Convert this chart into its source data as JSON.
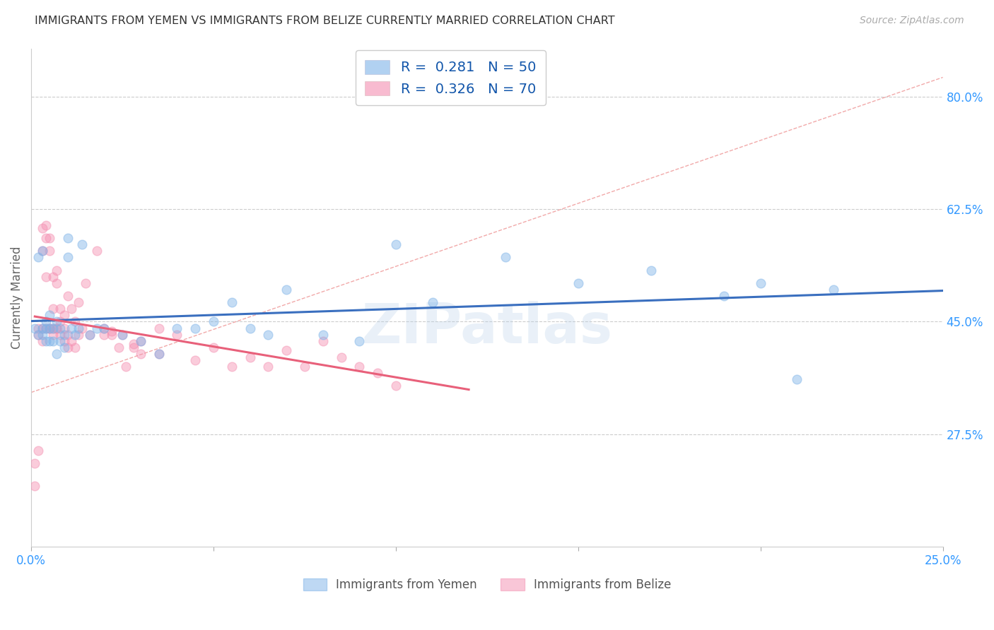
{
  "title": "IMMIGRANTS FROM YEMEN VS IMMIGRANTS FROM BELIZE CURRENTLY MARRIED CORRELATION CHART",
  "source": "Source: ZipAtlas.com",
  "ylabel": "Currently Married",
  "xlim": [
    0.0,
    0.25
  ],
  "ylim": [
    0.1,
    0.875
  ],
  "xticks": [
    0.0,
    0.05,
    0.1,
    0.15,
    0.2,
    0.25
  ],
  "xtick_labels": [
    "0.0%",
    "",
    "",
    "",
    "",
    "25.0%"
  ],
  "ytick_labels_right": [
    "80.0%",
    "62.5%",
    "45.0%",
    "27.5%"
  ],
  "ytick_positions_right": [
    0.8,
    0.625,
    0.45,
    0.275
  ],
  "legend_line1": "R =  0.281   N = 50",
  "legend_line2": "R =  0.326   N = 70",
  "color_yemen": "#7EB3E8",
  "color_belize": "#F48FB1",
  "color_trend_yemen": "#3A6FBF",
  "color_trend_belize": "#E8607A",
  "color_diagonal": "#F0A0A0",
  "color_axis_labels": "#3399FF",
  "color_title": "#333333",
  "watermark": "ZIPatlas",
  "marker_size": 85,
  "marker_alpha": 0.45,
  "trend_lw": 2.2,
  "diagonal_lw": 1.0,
  "scatter_yemen_x": [
    0.001,
    0.002,
    0.002,
    0.003,
    0.003,
    0.003,
    0.004,
    0.004,
    0.004,
    0.005,
    0.005,
    0.005,
    0.006,
    0.006,
    0.007,
    0.007,
    0.008,
    0.008,
    0.009,
    0.009,
    0.01,
    0.01,
    0.011,
    0.012,
    0.013,
    0.014,
    0.016,
    0.018,
    0.02,
    0.025,
    0.03,
    0.035,
    0.04,
    0.045,
    0.05,
    0.055,
    0.06,
    0.065,
    0.07,
    0.08,
    0.09,
    0.1,
    0.11,
    0.13,
    0.15,
    0.17,
    0.19,
    0.2,
    0.21,
    0.22
  ],
  "scatter_yemen_y": [
    0.44,
    0.43,
    0.55,
    0.56,
    0.44,
    0.43,
    0.45,
    0.42,
    0.44,
    0.46,
    0.44,
    0.42,
    0.44,
    0.42,
    0.45,
    0.4,
    0.44,
    0.42,
    0.43,
    0.41,
    0.55,
    0.58,
    0.44,
    0.43,
    0.44,
    0.57,
    0.43,
    0.44,
    0.44,
    0.43,
    0.42,
    0.4,
    0.44,
    0.44,
    0.45,
    0.48,
    0.44,
    0.43,
    0.5,
    0.43,
    0.42,
    0.57,
    0.48,
    0.55,
    0.51,
    0.53,
    0.49,
    0.51,
    0.36,
    0.5
  ],
  "scatter_belize_x": [
    0.001,
    0.001,
    0.002,
    0.002,
    0.002,
    0.003,
    0.003,
    0.003,
    0.003,
    0.004,
    0.004,
    0.004,
    0.004,
    0.005,
    0.005,
    0.005,
    0.005,
    0.006,
    0.006,
    0.006,
    0.006,
    0.007,
    0.007,
    0.007,
    0.007,
    0.008,
    0.008,
    0.008,
    0.009,
    0.009,
    0.009,
    0.01,
    0.01,
    0.01,
    0.011,
    0.011,
    0.012,
    0.012,
    0.013,
    0.013,
    0.014,
    0.015,
    0.016,
    0.018,
    0.02,
    0.022,
    0.024,
    0.026,
    0.028,
    0.03,
    0.035,
    0.04,
    0.045,
    0.05,
    0.055,
    0.06,
    0.065,
    0.07,
    0.075,
    0.08,
    0.085,
    0.09,
    0.095,
    0.1,
    0.02,
    0.025,
    0.03,
    0.035,
    0.022,
    0.028
  ],
  "scatter_belize_y": [
    0.23,
    0.195,
    0.25,
    0.44,
    0.43,
    0.56,
    0.595,
    0.44,
    0.42,
    0.58,
    0.44,
    0.52,
    0.6,
    0.44,
    0.56,
    0.58,
    0.44,
    0.43,
    0.47,
    0.52,
    0.44,
    0.44,
    0.51,
    0.53,
    0.44,
    0.43,
    0.45,
    0.47,
    0.42,
    0.44,
    0.46,
    0.41,
    0.43,
    0.49,
    0.42,
    0.47,
    0.41,
    0.45,
    0.43,
    0.48,
    0.44,
    0.51,
    0.43,
    0.56,
    0.43,
    0.43,
    0.41,
    0.38,
    0.41,
    0.4,
    0.4,
    0.43,
    0.39,
    0.41,
    0.38,
    0.395,
    0.38,
    0.405,
    0.38,
    0.42,
    0.395,
    0.38,
    0.37,
    0.35,
    0.44,
    0.43,
    0.42,
    0.44,
    0.435,
    0.415
  ],
  "belize_trend_xmax": 0.12
}
